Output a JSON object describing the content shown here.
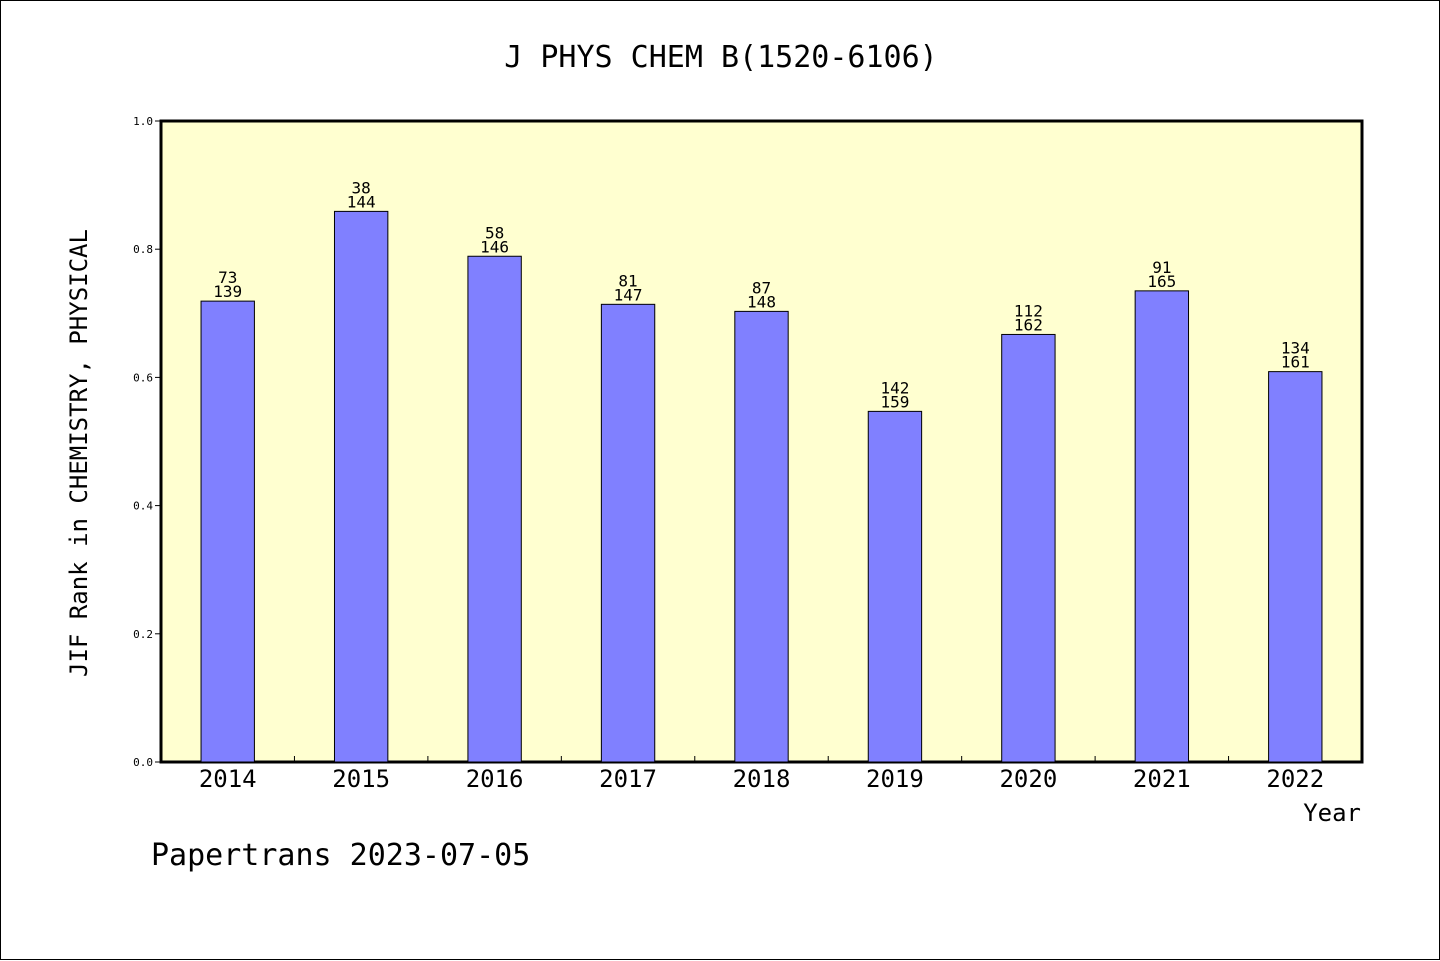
{
  "chart_data": {
    "type": "bar",
    "title": "J PHYS CHEM B(1520-6106)",
    "xlabel": "Year",
    "ylabel": "JIF Rank in CHEMISTRY, PHYSICAL",
    "ylim": [
      0,
      1.0
    ],
    "yticks": [
      "0.0",
      "0.2",
      "0.4",
      "0.6",
      "0.8",
      "1.0"
    ],
    "categories": [
      "2014",
      "2015",
      "2016",
      "2017",
      "2018",
      "2019",
      "2020",
      "2021",
      "2022"
    ],
    "values": [
      0.719,
      0.859,
      0.789,
      0.714,
      0.703,
      0.547,
      0.667,
      0.735,
      0.609
    ],
    "rank": [
      73,
      38,
      58,
      81,
      87,
      142,
      112,
      91,
      134
    ],
    "total": [
      139,
      144,
      146,
      147,
      148,
      159,
      162,
      165,
      161
    ],
    "grid": false,
    "colors": {
      "plot_background": "#ffffd0",
      "bar_fill": "#8080ff",
      "bar_stroke": "#000000"
    }
  },
  "footer": "Papertrans 2023-07-05"
}
